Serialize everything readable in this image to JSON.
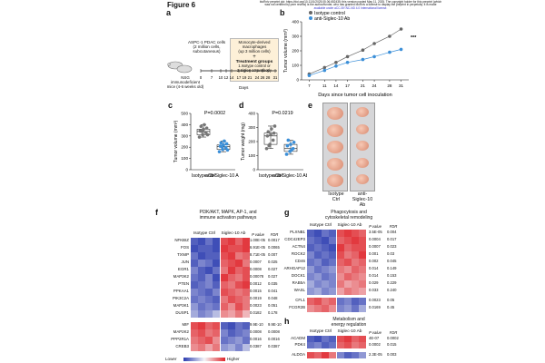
{
  "header": {
    "figure_title": "Figure 6",
    "note_line1": "bioRxiv preprint doi: https://doi.org/10.1101/2025.05.06.652435; this version posted May 11, 2025. The copyright holder for this preprint (which",
    "note_line2": "was not certified by peer review) is the author/funder, who has granted bioRxiv a license to display the preprint in perpetuity. It is made",
    "note_line3": "available under aCC-BY-NC-ND 4.0 International license."
  },
  "panel_labels": [
    "a",
    "b",
    "c",
    "d",
    "e",
    "f",
    "g",
    "h"
  ],
  "panel_a": {
    "cells_box": "ASPC-1 PDAC cells\n(2 million cells,\nsubcutaneous)",
    "macro_box": "Monocyte-derived\nmacrophages\n(up 3 million cells)",
    "plus": "+",
    "treatment_title": "Treatment groups",
    "treatment_1": "1.Isotype control or",
    "treatment_2": "2.Siglec-10 antibody",
    "mouse_label": "NSG immunodeficient\nmice (4-6 weeks old)",
    "days_ticks": [
      "0",
      "7",
      "10",
      "12",
      "14",
      "17",
      "19",
      "21",
      "24",
      "26",
      "28",
      "31"
    ],
    "days_label": "Days"
  },
  "panel_b": {
    "chart_data": {
      "type": "line",
      "xlabel": "Days since tumor cell inoculation",
      "ylabel": "Tumor volume (mm³)",
      "x": [
        7,
        11,
        14,
        17,
        21,
        24,
        28,
        31
      ],
      "xticks": [
        "7",
        "11",
        "14",
        "17",
        "21",
        "24",
        "28",
        "31"
      ],
      "yticks": [
        "0",
        "100",
        "200",
        "300",
        "400"
      ],
      "ylim": [
        0,
        400
      ],
      "series": [
        {
          "name": "Isotype control",
          "color": "#666666",
          "values": [
            40,
            85,
            120,
            160,
            205,
            250,
            300,
            350
          ]
        },
        {
          "name": "anti-Siglec-10 Ab",
          "color": "#3b8fd8",
          "values": [
            30,
            65,
            95,
            120,
            140,
            160,
            190,
            210
          ]
        }
      ],
      "significance": "***"
    }
  },
  "panel_c": {
    "chart_data": {
      "type": "scatter",
      "ylabel": "Tumor volume (mm³)",
      "pvalue": "P=0.0002",
      "yticks": [
        "0",
        "100",
        "200",
        "300",
        "400",
        "500"
      ],
      "ylim": [
        0,
        500
      ],
      "categories": [
        "Isotype Ctrl",
        "anti-Siglec-10 Ab"
      ],
      "series": [
        {
          "name": "Isotype Ctrl",
          "color": "#777777",
          "values": [
            290,
            310,
            330,
            345,
            360,
            370,
            385,
            400,
            310,
            340
          ]
        },
        {
          "name": "anti-Siglec-10 Ab",
          "color": "#3b8fd8",
          "values": [
            160,
            180,
            195,
            210,
            220,
            230,
            240,
            255,
            175,
            205
          ]
        }
      ]
    }
  },
  "panel_d": {
    "chart_data": {
      "type": "scatter",
      "ylabel": "Tumor weight (mg)",
      "pvalue": "P=0.0219",
      "yticks": [
        "0",
        "100",
        "200",
        "300",
        "400"
      ],
      "ylim": [
        0,
        400
      ],
      "categories": [
        "Isotype Ctrl",
        "anti-Siglec-10 Ab"
      ],
      "series": [
        {
          "name": "Isotype Ctrl",
          "color": "#777777",
          "values": [
            150,
            180,
            210,
            240,
            250,
            260,
            270,
            290,
            310,
            170
          ]
        },
        {
          "name": "anti-Siglec-10 Ab",
          "color": "#3b8fd8",
          "values": [
            110,
            130,
            150,
            170,
            180,
            195,
            210,
            140
          ]
        }
      ]
    }
  },
  "panel_e": {
    "col1": "Isotype\nCtrl",
    "col2": "anti-\nSiglec-10\nAb"
  },
  "panel_f": {
    "title": "PI3K/AKT, MAPK, AP-1, and\nimmune activation pathways",
    "group1": "Isotype Ctrl",
    "group2": "Siglec-10 Ab",
    "p_header": "P value",
    "fdr_header": "FDR",
    "block1": [
      {
        "gene": "NFKBIZ",
        "p": "1.00E-05",
        "fdr": "0.0017",
        "vals": [
          -0.8,
          -0.9,
          -0.7,
          -0.9,
          0.8,
          0.9,
          0.7,
          0.9
        ]
      },
      {
        "gene": "FOS",
        "p": "6.91E-05",
        "fdr": "0.0065",
        "vals": [
          -0.9,
          -0.8,
          -0.8,
          -0.9,
          0.9,
          0.8,
          0.8,
          0.9
        ]
      },
      {
        "gene": "TXNIP",
        "p": "8.71E-05",
        "fdr": "0.007",
        "vals": [
          -0.7,
          -0.9,
          -0.8,
          -0.8,
          0.8,
          0.9,
          0.6,
          0.7
        ]
      },
      {
        "gene": "JUN",
        "p": "0.0007",
        "fdr": "0.025",
        "vals": [
          -0.8,
          -0.6,
          -0.7,
          -0.9,
          0.7,
          0.8,
          0.9,
          0.6
        ]
      },
      {
        "gene": "EGR1",
        "p": "0.0008",
        "fdr": "0.027",
        "vals": [
          -0.6,
          -0.8,
          -0.9,
          -0.7,
          0.6,
          0.9,
          0.7,
          0.8
        ]
      },
      {
        "gene": "MAP3K2",
        "p": "0.00078",
        "fdr": "0.027",
        "vals": [
          -0.7,
          -0.8,
          -0.6,
          -0.9,
          0.9,
          0.7,
          0.6,
          0.8
        ]
      },
      {
        "gene": "PTEN",
        "p": "0.0012",
        "fdr": "0.035",
        "vals": [
          -0.8,
          -0.7,
          -0.6,
          -0.8,
          0.7,
          0.6,
          0.8,
          0.9
        ]
      },
      {
        "gene": "PPKAA1",
        "p": "0.0015",
        "fdr": "0.041",
        "vals": [
          -0.6,
          -0.7,
          -0.8,
          -0.6,
          0.8,
          0.7,
          0.6,
          0.7
        ]
      },
      {
        "gene": "PIK3C2A",
        "p": "0.0019",
        "fdr": "0.048",
        "vals": [
          -0.7,
          -0.6,
          -0.7,
          -0.8,
          0.6,
          0.8,
          0.7,
          0.6
        ]
      },
      {
        "gene": "MAP3K1",
        "p": "0.0023",
        "fdr": "0.051",
        "vals": [
          -0.5,
          -0.7,
          -0.6,
          -0.7,
          0.7,
          0.5,
          0.8,
          0.6
        ]
      },
      {
        "gene": "DUSP1",
        "p": "0.0182",
        "fdr": "0.178",
        "vals": [
          -0.4,
          -0.6,
          -0.5,
          -0.3,
          0.5,
          0.4,
          0.6,
          0.3
        ]
      }
    ],
    "block2": [
      {
        "gene": "MIF",
        "p": "9.9E-10",
        "fdr": "9.9E-10",
        "vals": [
          0.8,
          0.9,
          0.7,
          0.8,
          -0.8,
          -0.9,
          -0.7,
          -0.8
        ]
      },
      {
        "gene": "MAP2K2",
        "p": "0.0008",
        "fdr": "0.0008",
        "vals": [
          0.7,
          0.8,
          0.6,
          0.7,
          -0.6,
          -0.8,
          -0.7,
          -0.6
        ]
      },
      {
        "gene": "PPP2R1A",
        "p": "0.0016",
        "fdr": "0.0016",
        "vals": [
          0.6,
          0.7,
          0.8,
          0.5,
          -0.7,
          -0.6,
          -0.5,
          -0.7
        ]
      },
      {
        "gene": "CREB3",
        "p": "0.0387",
        "fdr": "0.0387",
        "vals": [
          0.5,
          0.6,
          0.4,
          0.6,
          -0.5,
          -0.4,
          -0.6,
          -0.3
        ]
      }
    ],
    "legend_low": "Lower",
    "legend_high": "Higher"
  },
  "panel_g": {
    "title": "Phagocytosis and\ncytoskeletal remodeling",
    "group1": "Isotype Ctrl",
    "group2": "Siglec-10 Ab",
    "p_header": "P value",
    "fdr_header": "FDR",
    "block1": [
      {
        "gene": "PLXNB1",
        "p": "3.5E-05",
        "fdr": "0.004",
        "vals": [
          -0.8,
          -0.9,
          -0.7,
          -0.8,
          0.8,
          0.9,
          0.8,
          0.7
        ]
      },
      {
        "gene": "CDC42EP3",
        "p": "0.0004",
        "fdr": "0.017",
        "vals": [
          -0.7,
          -0.8,
          -0.9,
          -0.7,
          0.7,
          0.8,
          0.9,
          0.8
        ]
      },
      {
        "gene": "ACTN4",
        "p": "0.0007",
        "fdr": "0.023",
        "vals": [
          -0.8,
          -0.7,
          -0.8,
          -0.9,
          0.9,
          0.7,
          0.8,
          0.8
        ]
      },
      {
        "gene": "ROCK2",
        "p": "0.001",
        "fdr": "0.03",
        "vals": [
          -0.6,
          -0.8,
          -0.7,
          -0.8,
          0.8,
          0.6,
          0.7,
          0.9
        ]
      },
      {
        "gene": "CD46",
        "p": "0.002",
        "fdr": "0.045",
        "vals": [
          -0.7,
          -0.6,
          -0.8,
          -0.7,
          0.7,
          0.8,
          0.6,
          0.7
        ]
      },
      {
        "gene": "ARHGAP12",
        "p": "0.014",
        "fdr": "0.149",
        "vals": [
          -0.5,
          -0.7,
          -0.6,
          -0.5,
          0.6,
          0.5,
          0.7,
          0.6
        ]
      },
      {
        "gene": "DOCK1",
        "p": "0.014",
        "fdr": "0.153",
        "vals": [
          -0.6,
          -0.5,
          -0.7,
          -0.6,
          0.5,
          0.7,
          0.6,
          0.5
        ]
      },
      {
        "gene": "RAB5A",
        "p": "0.029",
        "fdr": "0.229",
        "vals": [
          -0.4,
          -0.6,
          -0.5,
          -0.6,
          0.6,
          0.4,
          0.5,
          0.6
        ]
      },
      {
        "gene": "WASL",
        "p": "0.033",
        "fdr": "0.240",
        "vals": [
          -0.5,
          -0.4,
          -0.6,
          -0.5,
          0.4,
          0.6,
          0.5,
          0.4
        ]
      }
    ],
    "block2": [
      {
        "gene": "CFL1",
        "p": "0.0023",
        "fdr": "0.05",
        "vals": [
          0.7,
          0.8,
          0.6,
          0.7,
          -0.7,
          -0.6,
          -0.8,
          -0.7
        ]
      },
      {
        "gene": "FCGR2B",
        "p": "0.0169",
        "fdr": "0.45",
        "vals": [
          0.5,
          0.6,
          0.7,
          0.5,
          -0.6,
          -0.5,
          -0.7,
          -0.4
        ]
      }
    ]
  },
  "panel_h": {
    "title": "Metabolism and\nenergy regulation",
    "group1": "Isotype Ctrl",
    "group2": "Siglec-10 Ab",
    "p_header": "P value",
    "fdr_header": "FDR",
    "block1": [
      {
        "gene": "ACADM",
        "p": "4E-07",
        "fdr": "0.0002",
        "vals": [
          -0.8,
          -0.9,
          -0.7,
          -0.8,
          0.8,
          0.9,
          0.7,
          0.8
        ]
      },
      {
        "gene": "PDK4",
        "p": "0.0002",
        "fdr": "0.015",
        "vals": [
          -0.7,
          -0.6,
          -0.8,
          -0.7,
          0.7,
          0.8,
          0.6,
          0.7
        ]
      }
    ],
    "block2": [
      {
        "gene": "ALDOA",
        "p": "2.3E-05",
        "fdr": "0.003",
        "vals": [
          0.8,
          0.7,
          0.9,
          0.6,
          -0.6,
          -0.8,
          -0.7,
          -0.5
        ]
      }
    ]
  },
  "colors": {
    "red": "#e0242a",
    "blue": "#2b3bb0",
    "white": "#f5f5f8",
    "gray": "#666666",
    "lightblue": "#3b8fd8"
  }
}
